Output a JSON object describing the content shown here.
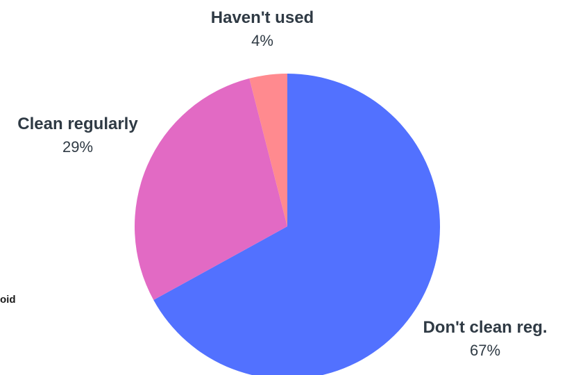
{
  "side_text": "oid",
  "chart_data": {
    "type": "pie",
    "title": "",
    "start_angle_deg": 0,
    "direction": "clockwise",
    "slices": [
      {
        "label": "Don't clean reg.",
        "value": 67,
        "display": "67%",
        "color": "#5271ff"
      },
      {
        "label": "Clean regularly",
        "value": 29,
        "display": "29%",
        "color": "#e26ac4"
      },
      {
        "label": "Haven't used",
        "value": 4,
        "display": "4%",
        "color": "#ff8a8f"
      }
    ],
    "legend": "none",
    "label_color": "#2f3a44"
  }
}
